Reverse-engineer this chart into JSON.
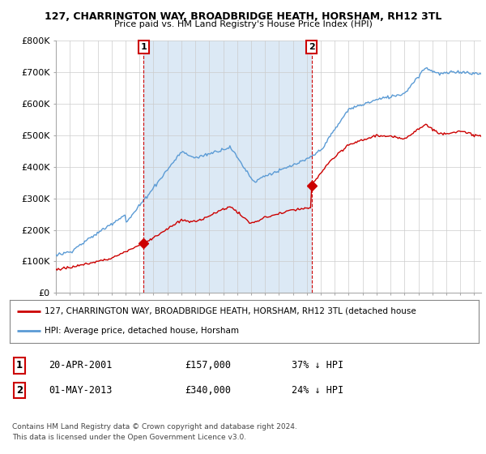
{
  "title": "127, CHARRINGTON WAY, BROADBRIDGE HEATH, HORSHAM, RH12 3TL",
  "subtitle": "Price paid vs. HM Land Registry's House Price Index (HPI)",
  "ylim": [
    0,
    800000
  ],
  "yticks": [
    0,
    100000,
    200000,
    300000,
    400000,
    500000,
    600000,
    700000,
    800000
  ],
  "ytick_labels": [
    "£0",
    "£100K",
    "£200K",
    "£300K",
    "£400K",
    "£500K",
    "£600K",
    "£700K",
    "£800K"
  ],
  "xmin": 1995.0,
  "xmax": 2025.5,
  "hpi_color": "#5b9bd5",
  "price_color": "#cc0000",
  "shade_color": "#dce9f5",
  "sale1_x": 2001.3,
  "sale1_y": 157000,
  "sale1_label": "1",
  "sale2_x": 2013.33,
  "sale2_y": 340000,
  "sale2_label": "2",
  "legend_line1": "127, CHARRINGTON WAY, BROADBRIDGE HEATH, HORSHAM, RH12 3TL (detached house",
  "legend_line2": "HPI: Average price, detached house, Horsham",
  "footer1": "Contains HM Land Registry data © Crown copyright and database right 2024.",
  "footer2": "This data is licensed under the Open Government Licence v3.0.",
  "table_row1": [
    "1",
    "20-APR-2001",
    "£157,000",
    "37% ↓ HPI"
  ],
  "table_row2": [
    "2",
    "01-MAY-2013",
    "£340,000",
    "24% ↓ HPI"
  ],
  "background_color": "#ffffff",
  "grid_color": "#cccccc"
}
